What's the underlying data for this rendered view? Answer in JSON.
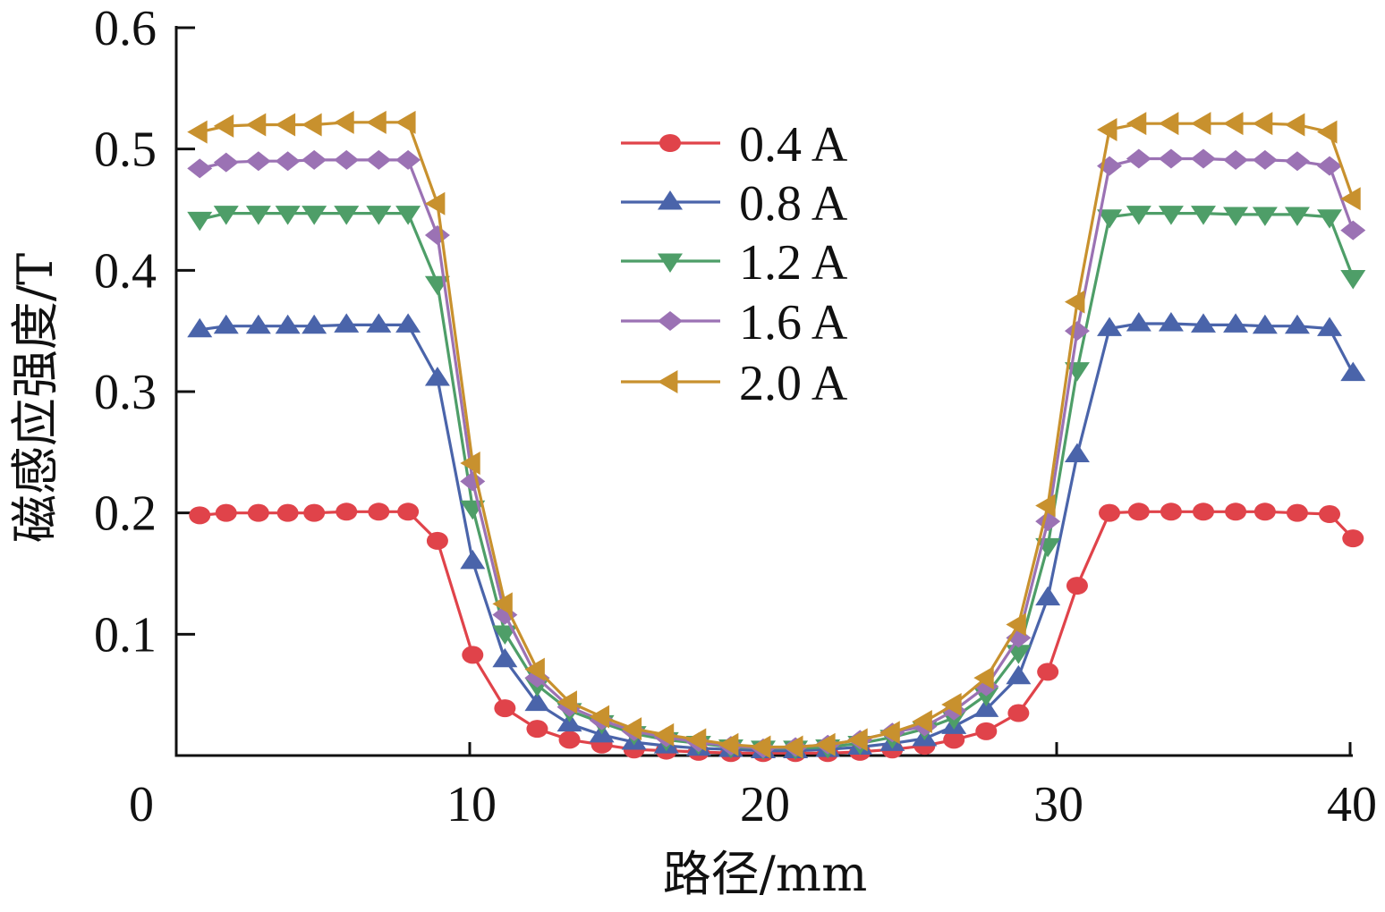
{
  "chart_data": {
    "type": "line",
    "title": "",
    "xlabel": "路径/mm",
    "ylabel": "磁感应强度/T",
    "xlim": [
      0,
      40
    ],
    "ylim": [
      0,
      0.6
    ],
    "x_ticks": [
      10,
      20,
      30,
      40
    ],
    "x_tick_labels": [
      "10",
      "20",
      "30",
      "40"
    ],
    "y_ticks": [
      0.1,
      0.2,
      0.3,
      0.4,
      0.5,
      0.6
    ],
    "y_tick_labels": [
      "0.1",
      "0.2",
      "0.3",
      "0.4",
      "0.5",
      "0.6"
    ],
    "origin_label": "0",
    "grid": false,
    "legend_position": "top-center",
    "x": [
      0.8,
      1.7,
      2.8,
      3.8,
      4.7,
      5.8,
      6.9,
      7.9,
      8.9,
      10.1,
      11.2,
      12.3,
      13.4,
      14.5,
      15.6,
      16.7,
      17.8,
      18.9,
      20.0,
      21.1,
      22.2,
      23.3,
      24.4,
      25.5,
      26.5,
      27.6,
      28.7,
      29.7,
      30.7,
      31.8,
      32.8,
      33.9,
      35.0,
      36.1,
      37.1,
      38.2,
      39.3,
      40.1
    ],
    "series": [
      {
        "name": "0.4 A",
        "color": "#E0434A",
        "marker": "circle",
        "values": [
          0.198,
          0.2,
          0.2,
          0.2,
          0.2,
          0.201,
          0.201,
          0.201,
          0.177,
          0.083,
          0.039,
          0.022,
          0.013,
          0.009,
          0.005,
          0.004,
          0.003,
          0.002,
          0.002,
          0.002,
          0.002,
          0.003,
          0.005,
          0.008,
          0.013,
          0.02,
          0.035,
          0.069,
          0.14,
          0.2,
          0.201,
          0.201,
          0.201,
          0.201,
          0.201,
          0.2,
          0.199,
          0.179
        ]
      },
      {
        "name": "0.8 A",
        "color": "#4A64AA",
        "marker": "triangle-up",
        "values": [
          0.351,
          0.354,
          0.354,
          0.354,
          0.354,
          0.355,
          0.355,
          0.355,
          0.311,
          0.16,
          0.079,
          0.043,
          0.026,
          0.017,
          0.011,
          0.008,
          0.006,
          0.005,
          0.004,
          0.004,
          0.005,
          0.007,
          0.01,
          0.014,
          0.024,
          0.038,
          0.065,
          0.13,
          0.248,
          0.352,
          0.356,
          0.356,
          0.355,
          0.355,
          0.354,
          0.354,
          0.352,
          0.315
        ]
      },
      {
        "name": "1.2 A",
        "color": "#4E9E68",
        "marker": "triangle-down",
        "values": [
          0.442,
          0.447,
          0.447,
          0.447,
          0.447,
          0.447,
          0.447,
          0.447,
          0.389,
          0.204,
          0.101,
          0.058,
          0.037,
          0.027,
          0.018,
          0.013,
          0.01,
          0.007,
          0.006,
          0.006,
          0.007,
          0.01,
          0.015,
          0.022,
          0.031,
          0.05,
          0.085,
          0.173,
          0.318,
          0.444,
          0.447,
          0.447,
          0.447,
          0.446,
          0.446,
          0.446,
          0.444,
          0.394
        ]
      },
      {
        "name": "1.6 A",
        "color": "#9B72B4",
        "marker": "diamond",
        "values": [
          0.484,
          0.489,
          0.49,
          0.49,
          0.491,
          0.491,
          0.491,
          0.491,
          0.429,
          0.226,
          0.116,
          0.064,
          0.04,
          0.029,
          0.02,
          0.015,
          0.011,
          0.008,
          0.006,
          0.007,
          0.009,
          0.013,
          0.019,
          0.024,
          0.037,
          0.057,
          0.097,
          0.193,
          0.35,
          0.486,
          0.492,
          0.492,
          0.492,
          0.491,
          0.491,
          0.49,
          0.486,
          0.433
        ]
      },
      {
        "name": "2.0 A",
        "color": "#C8912E",
        "marker": "triangle-left",
        "values": [
          0.514,
          0.519,
          0.52,
          0.52,
          0.52,
          0.522,
          0.522,
          0.522,
          0.455,
          0.241,
          0.125,
          0.071,
          0.044,
          0.032,
          0.022,
          0.017,
          0.013,
          0.009,
          0.007,
          0.007,
          0.009,
          0.013,
          0.019,
          0.028,
          0.042,
          0.064,
          0.108,
          0.206,
          0.374,
          0.516,
          0.521,
          0.521,
          0.521,
          0.521,
          0.521,
          0.52,
          0.514,
          0.459
        ]
      }
    ]
  }
}
